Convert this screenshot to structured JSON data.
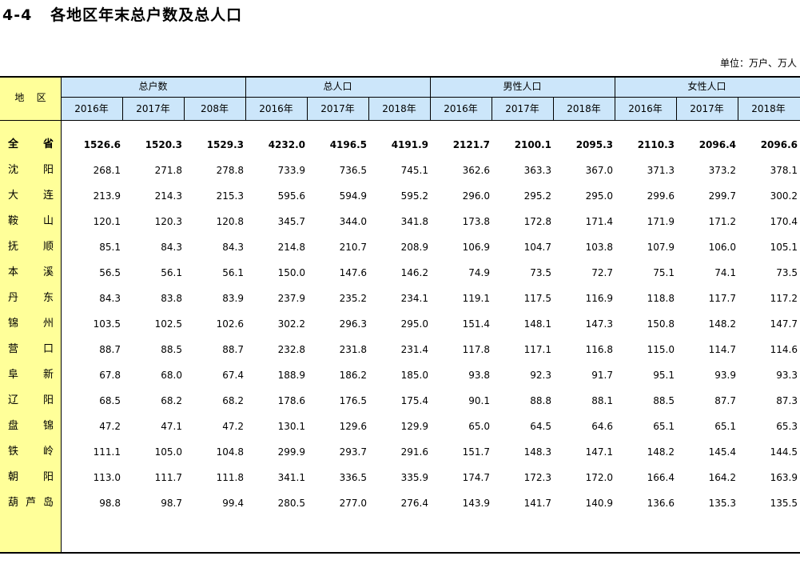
{
  "title": "4-4   各地区年末总户数及总人口",
  "unit": "单位：万户、万人",
  "header": {
    "region": "地    区",
    "groups": [
      "总户数",
      "总人口",
      "男性人口",
      "女性人口"
    ],
    "years": [
      "2016年",
      "2017年",
      "208年",
      "2016年",
      "2017年",
      "2018年",
      "2016年",
      "2017年",
      "2018年",
      "2016年",
      "2017年",
      "2018年"
    ]
  },
  "rows": [
    {
      "region": [
        "全",
        "省"
      ],
      "values": [
        "1526.6",
        "1520.3",
        "1529.3",
        "4232.0",
        "4196.5",
        "4191.9",
        "2121.7",
        "2100.1",
        "2095.3",
        "2110.3",
        "2096.4",
        "2096.6"
      ],
      "bold": true
    },
    {
      "region": [
        "沈",
        "阳"
      ],
      "values": [
        "268.1",
        "271.8",
        "278.8",
        "733.9",
        "736.5",
        "745.1",
        "362.6",
        "363.3",
        "367.0",
        "371.3",
        "373.2",
        "378.1"
      ]
    },
    {
      "region": [
        "大",
        "连"
      ],
      "values": [
        "213.9",
        "214.3",
        "215.3",
        "595.6",
        "594.9",
        "595.2",
        "296.0",
        "295.2",
        "295.0",
        "299.6",
        "299.7",
        "300.2"
      ]
    },
    {
      "region": [
        "鞍",
        "山"
      ],
      "values": [
        "120.1",
        "120.3",
        "120.8",
        "345.7",
        "344.0",
        "341.8",
        "173.8",
        "172.8",
        "171.4",
        "171.9",
        "171.2",
        "170.4"
      ]
    },
    {
      "region": [
        "抚",
        "顺"
      ],
      "values": [
        "85.1",
        "84.3",
        "84.3",
        "214.8",
        "210.7",
        "208.9",
        "106.9",
        "104.7",
        "103.8",
        "107.9",
        "106.0",
        "105.1"
      ]
    },
    {
      "region": [
        "本",
        "溪"
      ],
      "values": [
        "56.5",
        "56.1",
        "56.1",
        "150.0",
        "147.6",
        "146.2",
        "74.9",
        "73.5",
        "72.7",
        "75.1",
        "74.1",
        "73.5"
      ]
    },
    {
      "region": [
        "丹",
        "东"
      ],
      "values": [
        "84.3",
        "83.8",
        "83.9",
        "237.9",
        "235.2",
        "234.1",
        "119.1",
        "117.5",
        "116.9",
        "118.8",
        "117.7",
        "117.2"
      ]
    },
    {
      "region": [
        "锦",
        "州"
      ],
      "values": [
        "103.5",
        "102.5",
        "102.6",
        "302.2",
        "296.3",
        "295.0",
        "151.4",
        "148.1",
        "147.3",
        "150.8",
        "148.2",
        "147.7"
      ]
    },
    {
      "region": [
        "营",
        "口"
      ],
      "values": [
        "88.7",
        "88.5",
        "88.7",
        "232.8",
        "231.8",
        "231.4",
        "117.8",
        "117.1",
        "116.8",
        "115.0",
        "114.7",
        "114.6"
      ]
    },
    {
      "region": [
        "阜",
        "新"
      ],
      "values": [
        "67.8",
        "68.0",
        "67.4",
        "188.9",
        "186.2",
        "185.0",
        "93.8",
        "92.3",
        "91.7",
        "95.1",
        "93.9",
        "93.3"
      ]
    },
    {
      "region": [
        "辽",
        "阳"
      ],
      "values": [
        "68.5",
        "68.2",
        "68.2",
        "178.6",
        "176.5",
        "175.4",
        "90.1",
        "88.8",
        "88.1",
        "88.5",
        "87.7",
        "87.3"
      ]
    },
    {
      "region": [
        "盘",
        "锦"
      ],
      "values": [
        "47.2",
        "47.1",
        "47.2",
        "130.1",
        "129.6",
        "129.9",
        "65.0",
        "64.5",
        "64.6",
        "65.1",
        "65.1",
        "65.3"
      ]
    },
    {
      "region": [
        "铁",
        "岭"
      ],
      "values": [
        "111.1",
        "105.0",
        "104.8",
        "299.9",
        "293.7",
        "291.6",
        "151.7",
        "148.3",
        "147.1",
        "148.2",
        "145.4",
        "144.5"
      ]
    },
    {
      "region": [
        "朝",
        "阳"
      ],
      "values": [
        "113.0",
        "111.7",
        "111.8",
        "341.1",
        "336.5",
        "335.9",
        "174.7",
        "172.3",
        "172.0",
        "166.4",
        "164.2",
        "163.9"
      ]
    },
    {
      "region": [
        "葫",
        "芦",
        "岛"
      ],
      "values": [
        "98.8",
        "98.7",
        "99.4",
        "280.5",
        "277.0",
        "276.4",
        "143.9",
        "141.7",
        "140.9",
        "136.6",
        "135.3",
        "135.5"
      ]
    }
  ]
}
